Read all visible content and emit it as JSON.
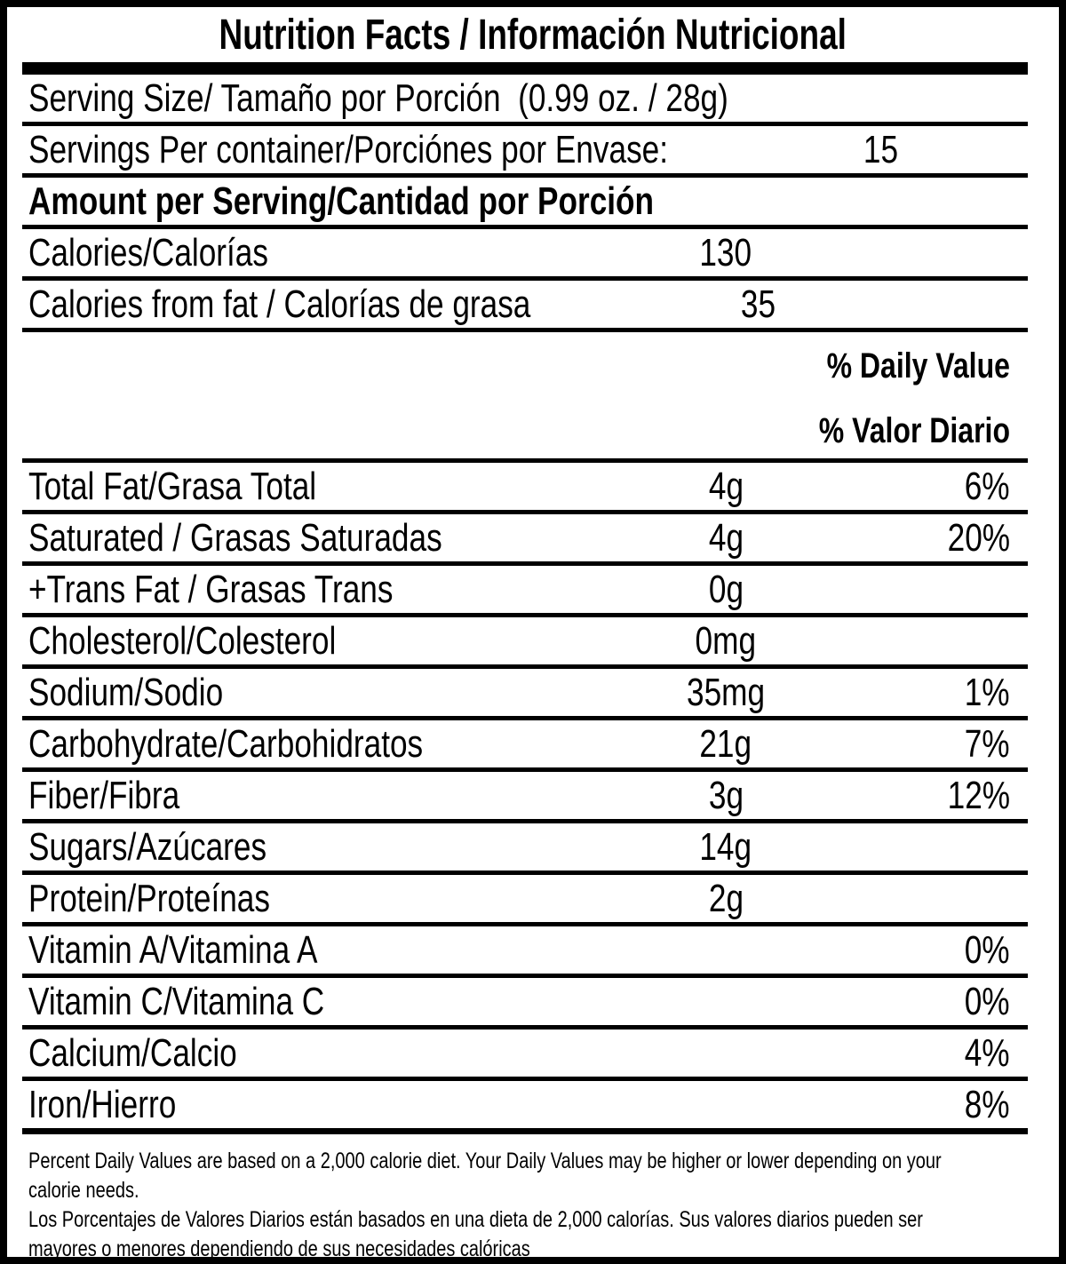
{
  "label": {
    "title": "Nutrition Facts / Información Nutricional",
    "serving_size": "Serving Size/ Tamaño por Porción  (0.99 oz. / 28g)",
    "servings_per_container": {
      "label": "Servings Per container/Porciónes por Envase:",
      "value": "15"
    },
    "amount_per_serving": "Amount per Serving/Cantidad por Porción",
    "calories": {
      "label": "Calories/Calorías",
      "value": "130"
    },
    "calories_from_fat": {
      "label": "Calories from fat / Calorías de grasa",
      "value": "35"
    },
    "daily_value_header": {
      "line1": "% Daily Value",
      "line2": "% Valor Diario"
    },
    "nutrients": [
      {
        "label": "Total Fat/Grasa Total",
        "amount": "4g",
        "dv": "6%"
      },
      {
        "label": "Saturated / Grasas Saturadas",
        "amount": "4g",
        "dv": "20%"
      },
      {
        "label": "+Trans Fat / Grasas Trans",
        "amount": "0g",
        "dv": ""
      },
      {
        "label": "Cholesterol/Colesterol",
        "amount": "0mg",
        "dv": ""
      },
      {
        "label": "Sodium/Sodio",
        "amount": "35mg",
        "dv": "1%"
      },
      {
        "label": "Carbohydrate/Carbohidratos",
        "amount": "21g",
        "dv": "7%"
      },
      {
        "label": "Fiber/Fibra",
        "amount": "3g",
        "dv": "12%"
      },
      {
        "label": "Sugars/Azúcares",
        "amount": "14g",
        "dv": ""
      },
      {
        "label": "Protein/Proteínas",
        "amount": "2g",
        "dv": ""
      },
      {
        "label": "Vitamin A/Vitamina A",
        "amount": "",
        "dv": "0%"
      },
      {
        "label": "Vitamin C/Vitamina C",
        "amount": "",
        "dv": "0%"
      },
      {
        "label": "Calcium/Calcio",
        "amount": "",
        "dv": "4%"
      },
      {
        "label": "Iron/Hierro",
        "amount": "",
        "dv": "8%"
      }
    ],
    "footnote_en_lines": [
      "Percent Daily Values are based on a 2,000 calorie diet. Your Daily Values may be higher or lower depending on your",
      "calorie needs."
    ],
    "footnote_es_lines": [
      "Los Porcentajes de Valores Diarios están basados en una dieta de 2,000 calorías. Sus valores diarios pueden ser",
      "mayores o menores dependiendo de sus necesidades calóricas"
    ]
  },
  "colors": {
    "ink": "#000000",
    "background": "#ffffff"
  }
}
